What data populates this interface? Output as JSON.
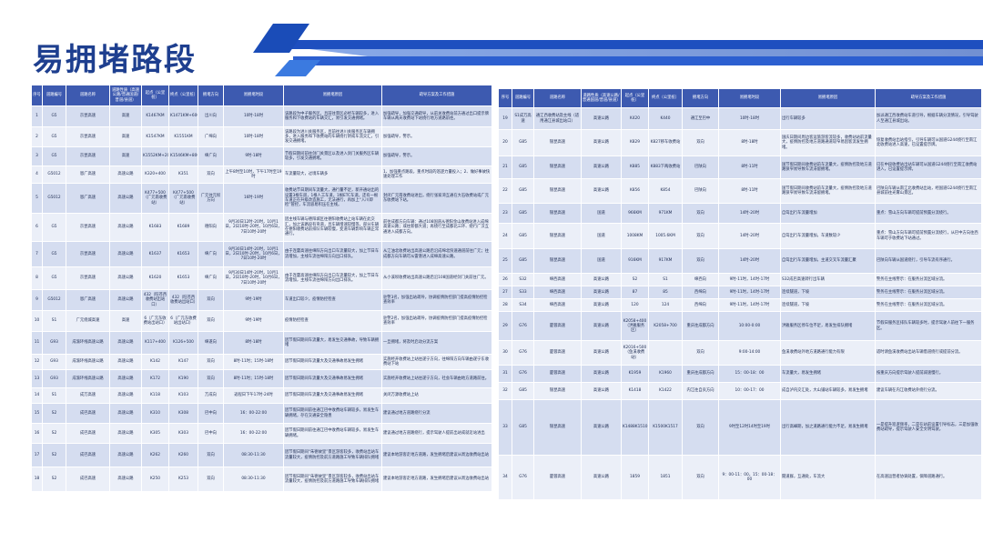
{
  "title": "易拥堵路段",
  "colors": {
    "header": "#3d5ab0",
    "row_odd": "#d5ddf0",
    "row_even": "#ebeff8",
    "title": "#1e3f8f"
  },
  "headers": [
    "序号",
    "道路编号",
    "道路名称",
    "道路性质（高速公路/普通国道/普道/县道）",
    "起点（公里桩）",
    "终点（公里桩）",
    "拥堵方向",
    "易拥堵时段",
    "易拥堵原因",
    "疏导方案及工作措施"
  ],
  "left_rows": [
    [
      "1",
      "G5",
      "京昆高速",
      "高速",
      "K1467KM",
      "K1471KM+600M",
      "出川向",
      "10时-18时",
      "该路段为中子服务区，且前往景区必经车辆较多，进入服务和下收费站的车辆交汇，易引发交通拥堵。",
      "加强疏导，加强交通疏导，从前关收费站前方通过出口提示牌车辆从两天收费站下站绕行地方道路前往。"
    ],
    [
      "2",
      "G5",
      "京昆高速",
      "高速",
      "K1547KM",
      "K1551KM",
      "广绵向",
      "10时-18时",
      "该路段为进川关服务区，且前往进川关服务区车辆拥多，进入服务和下收费站的车辆绕行阴或车流交汇，引发交通拥堵。",
      "加强疏导，警示。"
    ],
    [
      "3",
      "G5",
      "京昆高速",
      "高速",
      "K1552KM+200M",
      "K1546KM+800M",
      "绵广向",
      "9时-18时",
      "节假日期间前往剑门关景区以及进入剑门关服务区车辆较多，引发交通拥堵。",
      "加强疏导，警示。"
    ],
    [
      "4",
      "G5012",
      "恩广高速",
      "高速公路",
      "K320+400",
      "K351",
      "双向",
      "上午8时至10时，下午17时至19时",
      "车流量较大，过境车辆多",
      "1、加强重点路段，重点时段的巡逻力量投入；2、做好事故快速处理工作"
    ],
    [
      "5",
      "G5012",
      "恩广高速",
      "高速公路",
      "K477+500（广元南收费站）",
      "K477+500（广元南收费站）",
      "广元往元坝方向",
      "16时-19时",
      "收费站节日期间车流量大，通行量不足，新开通站出的设置3根车道，1根人工车道，1根ETC车道，还有一根车道正在升级改造施工，无法通行，再加上“入川即检”管控，车流容易积压在主线。",
      "封闭广元南收费站进出，绕行张家湾互通在大石收费站或广元东收费站下站。"
    ],
    [
      "6",
      "G5",
      "京昆高速",
      "高速公路",
      "K1683",
      "K1689",
      "德阳向",
      "9月30日12时-20时，10月1日，2日10时-20时，10月6日，7日10时-20时",
      "因主线车辆与德阳城区往德阳收费站上站车辆在此交汇，加之该路段有弯道，且车辆增速较慢等，部分车辆在德阳收费站前排队车辆较慢，变道车辆影响车辆正常通行。",
      "前往成都方向车辆：通过108国道从德阳金山收费站进入成绵高速公路；或往新都大道；再绕行至成都北三环、绕行广汉互通进入成都方向。"
    ],
    [
      "7",
      "G5",
      "京昆高速",
      "高速公路",
      "K1637",
      "K1653",
      "绵广向",
      "9月30日14时-20时，10月1日，2日10时-20时，10月6日，7日10时-20时",
      "由于连霍高速往绵阳方向出口车流量较大，加上节日车流增加，主线车流往绵阳方向出口排队。",
      "从江油北收费站出高速公路后沿成绵北快速通道前往广元；往成都方向车辆可从雷港进入成绵高速公路。"
    ],
    [
      "8",
      "G5",
      "京昆高速",
      "高速公路",
      "K1620",
      "K1653",
      "绵广向",
      "9月30日14时-20时，10月1日，2日10时-20时，10月6日，7日10时-20时",
      "由于连霍高速往绵阳方向出口车流量较大，加上节日车流增加，主线车流往绵阳方向出口排队。",
      "从小溪坝收费站出高速公路后沿108国道经剑门关前往广元。"
    ],
    [
      "9",
      "G5012",
      "恩广高速",
      "高速公路",
      "432（旺苍西收费站出站口）",
      "432（旺苍西收费站出站口）",
      "双向",
      "9时-19时",
      "车道出口较少，疫情防控检查",
      "驻警3名，加强出站疏导，协调疫情防控部门提高疫情防控检查效率"
    ],
    [
      "10",
      "S1",
      "广元绕城高速",
      "高速",
      "6（广元东收费站出站口）",
      "6（广元东收费站出站口）",
      "双向",
      "9时-19时",
      "疫情防控检查",
      "驻警2名，加强出站疏导，协调疫情防控部门提高疫情防控检查效率"
    ],
    [
      "11",
      "G93",
      "成渝环线高速公路",
      "高速公路",
      "K117+400",
      "K126+500",
      "绵遂向",
      "8时-18时",
      "因节假日期间车流量大，易发生交通事故，导致车辆拥堵",
      "一旦拥堵，将及时启动分流方案"
    ],
    [
      "12",
      "G93",
      "成渝环线高速公路",
      "高速公路",
      "K142",
      "K147",
      "双向",
      "8时-11时；15时-18时",
      "因节假日期间车流量大及交通事故易发生拥堵",
      "实施经开收费站上站往遂宁方向，往绵阳方向车辆由遂宁东收费站下站"
    ],
    [
      "13",
      "G93",
      "成渝环线高速公路",
      "高速公路",
      "K172",
      "K190",
      "双向",
      "8时-11时；15时-18时",
      "因节假日期间车流量大及交通事故易发生拥堵",
      "实施经开收费站上站往遂宁方向，社会车辆由地方道路前往。"
    ],
    [
      "14",
      "S1",
      "成万高速",
      "高速公路",
      "K118",
      "K103",
      "万成向",
      "返程日下午17时-24时",
      "因节假日期间车流量大及交通事故易发生拥堵",
      "关闭万源收费站上站"
    ],
    [
      "15",
      "S2",
      "成巴高速",
      "高速公路",
      "K310",
      "K308",
      "巴中向",
      "16：00-22:00",
      "因节假日期间前往通江巴中收费站车辆较多，易发生车辆拥堵，存在交通安全隐患",
      "建议通过地方道路绕行分流"
    ],
    [
      "16",
      "S2",
      "成巴高速",
      "高速公路",
      "K305",
      "K303",
      "巴中向",
      "16：00-22:00",
      "因节假日期间前往通江巴中收费站车辆较多，易发生车辆拥堵。",
      "建议通过地方道路绕行，提示驾驶人提前出站或就近站进出"
    ],
    [
      "17",
      "S2",
      "成巴高速",
      "高速公路",
      "K262",
      "K260",
      "双向",
      "08:30-11:30",
      "因节假日期间“朱德故里”景区游客较多，收费站出站车流量较大，疫情防控及前方道路施工导致车辆排队拥堵",
      "建议本地游客走地方道路，发生拥堵后建议从周边收费站出站"
    ],
    [
      "18",
      "S2",
      "成巴高速",
      "高速公路",
      "K250",
      "K253",
      "双向",
      "08:30-11:30",
      "因节假日期间“朱德故里”景区游客较多，收费站出站车流量较大，疫情防控及前方道路施工导致车辆排队拥堵",
      "建议本地游客走地方道路，发生拥堵后建议从周边收费站出站"
    ]
  ],
  "right_rows": [
    [
      "19",
      "S1成万高速",
      "通江西收费站及主线（适用通江县城出站口）",
      "高速公路",
      "K420",
      "K440",
      "通江至巴中",
      "10时-18时",
      "出行车辆较多",
      "加派通江西收费站车道引导，根据车辆分流情况，引导驾驶人至通江县城出站。"
    ],
    [
      "20",
      "G85",
      "银昆高速",
      "高速公路",
      "K829",
      "K827移车收费站",
      "双向",
      "8时-18时",
      "国庆日期间周边客运旅游客流较多，收费站站前流量大，疫情防控及地方道路通道较窄易因客流发生拥堵。",
      "恢复收费站出站指引，引导车辆可从国道G244绕行至南江北收费站进入高速，已设置提示牌。"
    ],
    [
      "21",
      "G85",
      "银昆高速",
      "高速公路",
      "K885",
      "K883下两收费站",
      "巴陕向",
      "8时-11时",
      "国节假日期间收费站前车流量大，疫情防控及地方道路狭窄易导致车流滞留拥堵。",
      "已在中段收费站出站车辆可从国道G244绕行至南江收费站进入，已设置提示牌。"
    ],
    [
      "22",
      "G85",
      "银昆高速",
      "高速公路",
      "K856",
      "K854",
      "巴陕向",
      "8时-11时",
      "国节假日期间收费站前车流量大，疫情防控及地方道路狭窄易导致车流滞留拥堵。",
      "巴陕向车辆从南江北收费站出站，经国道G244绕行至南江县城前往光雾山景区。"
    ],
    [
      "23",
      "G85",
      "银昆高速",
      "国道",
      "966KM",
      "971KM",
      "双向",
      "14时-20时",
      "自驾出行车流量增加",
      "重点：雪山方向车辆可提前预置分流绕行。"
    ],
    [
      "24",
      "G85",
      "银昆高速",
      "国道",
      "1008KM",
      "1005.6KM",
      "双向",
      "14时-20时",
      "自驾出行车流量增加，车道数较少",
      "重点：雪山方向车辆可提前预置分流绕行，从巴中方向往西车辆可于收费站下站通过。"
    ],
    [
      "25",
      "G85",
      "银昆高速",
      "国道",
      "916KM",
      "917KM",
      "双向",
      "14时-20时",
      "自驾出行车流量增加，主道交叉车流量汇聚",
      "巴陕向车辆从国道绕行，引导车流有序通行。"
    ],
    [
      "26",
      "S32",
      "绵西高速",
      "高速公路",
      "S2",
      "S1",
      "绵西向",
      "9时-11时，14时-17时",
      "S32成巴高速转行出车辆",
      "警务在主线警示：在服务分流区域分流。"
    ],
    [
      "27",
      "S33",
      "绵西高速",
      "高速公路",
      "87",
      "85",
      "西绵向",
      "9时-11时，14时-17时",
      "连续隧道，下坡",
      "警务在主线警示：在服务分流区域分流。"
    ],
    [
      "28",
      "S34",
      "绵西高速",
      "高速公路",
      "120",
      "124",
      "西绵向",
      "9时-11时，14时-17时",
      "连续隧道，下坡",
      "警务在主线警示：在服务分流区域分流。"
    ],
    [
      "29",
      "G76",
      "厦蓉高速",
      "高速公路",
      "K2058+400（洪雅服务区）",
      "K2058+700",
      "重庆往成都方向",
      "10:00-0:00",
      "洪雅服务区停车位不足，易发生排队拥堵",
      "节假日服务区排队车辆较多时，提示驾驶人前往下一服务区。"
    ],
    [
      "30",
      "G76",
      "厦蓉高速",
      "高速公路",
      "K2016+500（鱼溪收费站）",
      "",
      "双向",
      "9:00-14:00",
      "鱼溪收费站外地方道路通行能力有限",
      "适时请鱼溪收费站出站车辆借道绕行或提前分流。"
    ],
    [
      "31",
      "G76",
      "厦蓉高速",
      "高速公路",
      "K1959",
      "K1960",
      "重庆往成都方向",
      "15：00-18：00",
      "车流量大，易发生拥堵",
      "按重庆方向提示驾驶人提前减速慢行。"
    ],
    [
      "32",
      "G85",
      "银昆高速",
      "高速公路",
      "K1418",
      "K1422",
      "内江往自贡方向",
      "10：00-17：00",
      "成自泸内交汇处，大山铺站车辆较多，易发生拥堵",
      "建议车辆在内江收费站外绕行分流。"
    ],
    [
      "33",
      "G85",
      "银昆高速",
      "高速公路",
      "K1488K1510",
      "K1500K1517",
      "双向",
      "9时至12时14时至19时",
      "出行高峰期，加之道路通行能力不足，易发生拥堵",
      "一是提升巡逻频率，二是在站前设置引导标志，三是加强收费站疏导，提示驾驶人安全文明驾驶。"
    ],
    [
      "34",
      "G76",
      "厦蓉高速",
      "高速公路",
      "1859",
      "1851",
      "双向",
      "9：00-11：00，15：00-18：00",
      "隧道群，互通处，车流大",
      "在高速运营者协调处置，保障道路通行。"
    ]
  ]
}
